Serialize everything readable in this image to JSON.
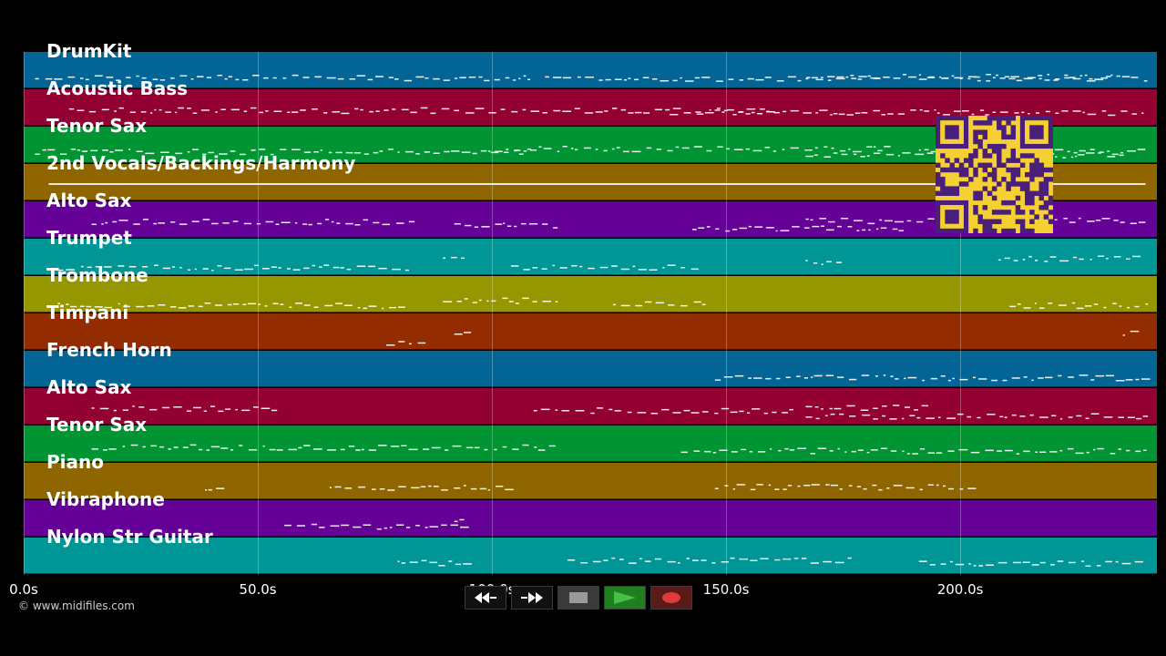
{
  "colors": {
    "background": "#000000",
    "note": "#ffffff",
    "qr_background": "#f5d033",
    "qr_foreground": "#4a1f7a"
  },
  "tracks": [
    {
      "name": "DrumKit",
      "color": "#036596"
    },
    {
      "name": "Acoustic Bass",
      "color": "#930132"
    },
    {
      "name": "Tenor Sax",
      "color": "#019432"
    },
    {
      "name": "2nd Vocals/Backings/Harmony",
      "color": "#8f6500"
    },
    {
      "name": "Alto Sax",
      "color": "#650196"
    },
    {
      "name": "Trumpet",
      "color": "#019696"
    },
    {
      "name": "Trombone",
      "color": "#969600"
    },
    {
      "name": "Timpani",
      "color": "#932d01"
    },
    {
      "name": "French Horn",
      "color": "#036596"
    },
    {
      "name": "Alto Sax",
      "color": "#930132"
    },
    {
      "name": "Tenor Sax",
      "color": "#019432"
    },
    {
      "name": "Piano",
      "color": "#8f6500"
    },
    {
      "name": "Vibraphone",
      "color": "#650196"
    },
    {
      "name": "Nylon Str Guitar",
      "color": "#019696"
    }
  ],
  "timeline": {
    "ticks": [
      {
        "label": "0.0s",
        "seconds": 0
      },
      {
        "label": "50.0s",
        "seconds": 50
      },
      {
        "label": "100.0s",
        "seconds": 100
      },
      {
        "label": "150.0s",
        "seconds": 150
      },
      {
        "label": "200.0s",
        "seconds": 200
      }
    ],
    "visible_range_seconds": [
      0,
      242
    ]
  },
  "controls": {
    "rewind": "rewind-icon",
    "fast_forward": "fast-forward-icon",
    "stop": "stop-icon",
    "play": "play-icon",
    "record": "record-icon"
  },
  "footer": {
    "copyright": "© www.midifiles.com"
  }
}
